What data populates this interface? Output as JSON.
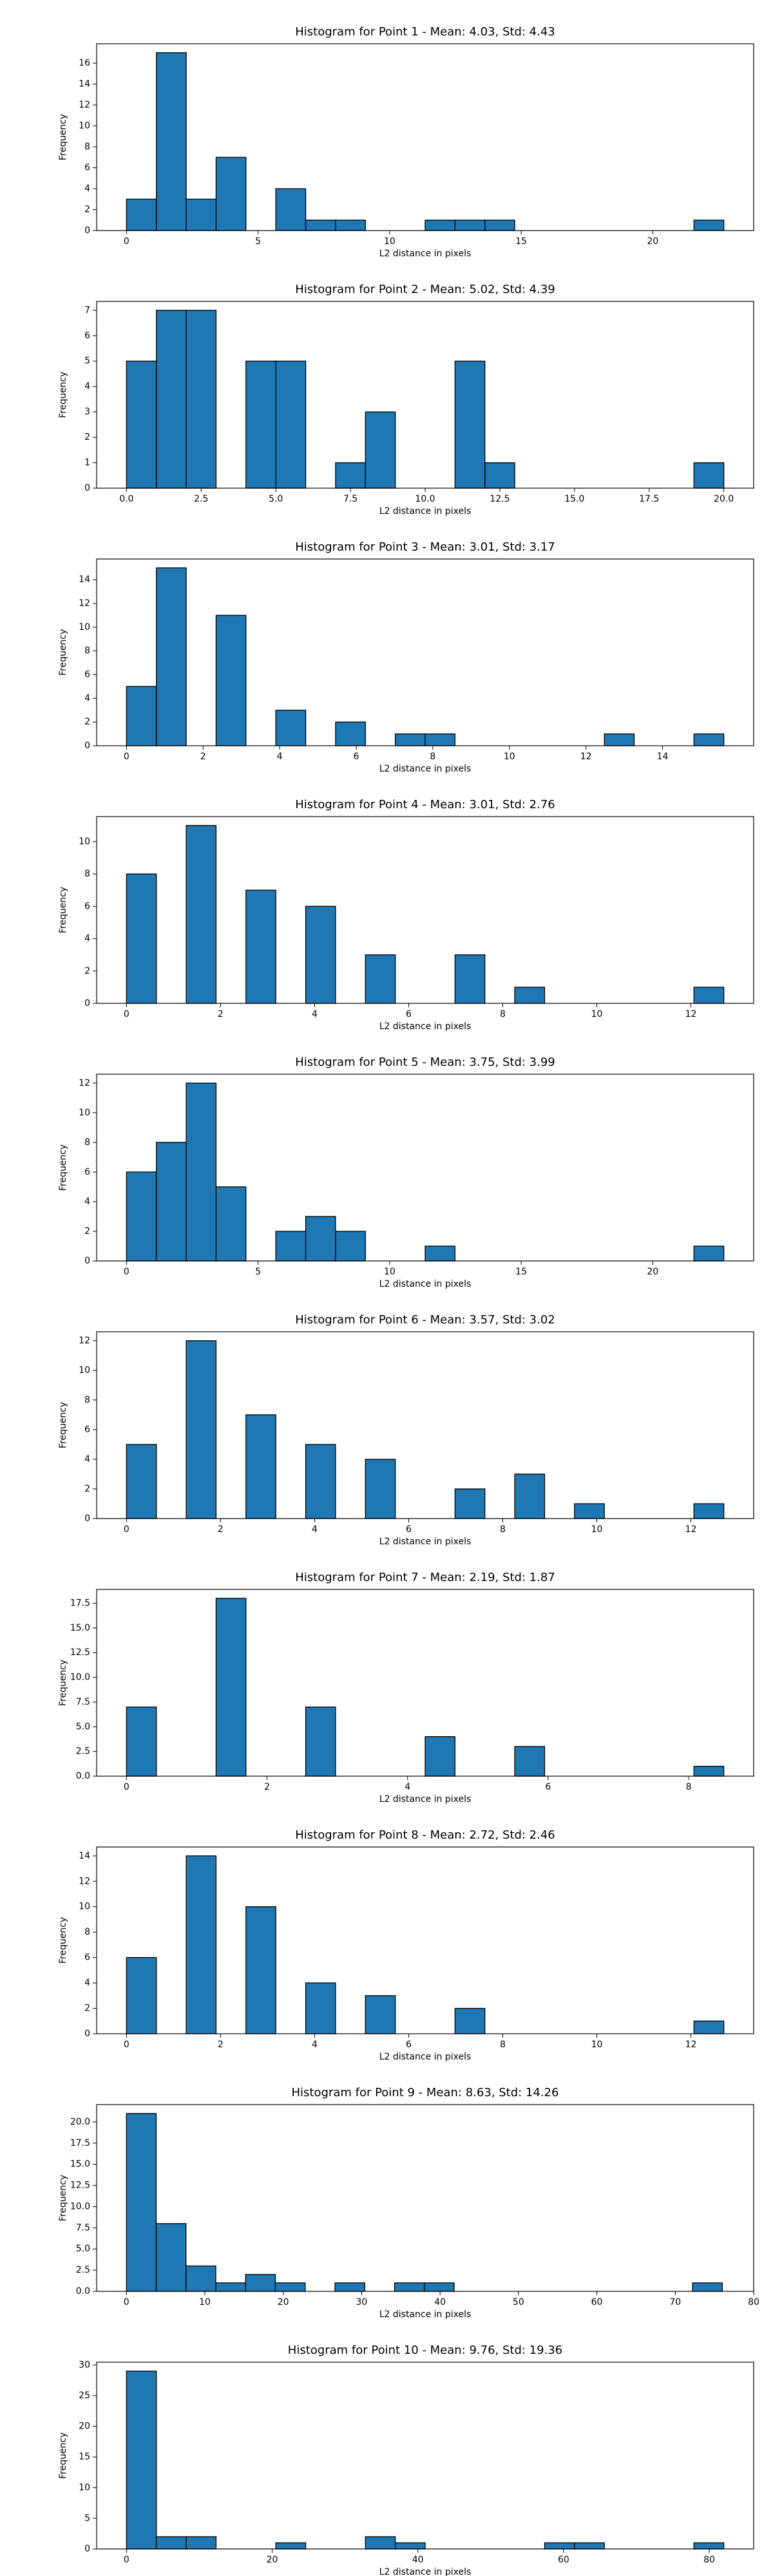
{
  "chart_data": [
    {
      "type": "histogram",
      "title": "Histogram for Point 1 - Mean: 4.03, Std: 4.43",
      "x_label": "L2 distance in pixels",
      "y_label": "Frequency",
      "color": "#1f77b4",
      "edgecolor": "#000000",
      "bins": [
        0,
        1.135,
        2.27,
        3.405,
        4.54,
        5.675,
        6.81,
        7.945,
        9.08,
        10.215,
        11.35,
        12.485,
        13.62,
        14.755,
        15.89,
        17.025,
        18.16,
        19.295,
        20.43,
        21.565,
        22.7
      ],
      "values": [
        3,
        17,
        3,
        7,
        0,
        4,
        1,
        1,
        0,
        0,
        1,
        1,
        1,
        0,
        0,
        0,
        0,
        0,
        0,
        1
      ],
      "xlim": [
        -1.135,
        23.835
      ],
      "ylim": [
        0,
        17.85
      ],
      "xticks": [
        0,
        5,
        10,
        15,
        20
      ],
      "yticks": [
        0,
        2,
        4,
        6,
        8,
        10,
        12,
        14,
        16
      ]
    },
    {
      "type": "histogram",
      "title": "Histogram for Point 2 - Mean: 5.02, Std: 4.39",
      "x_label": "L2 distance in pixels",
      "y_label": "Frequency",
      "color": "#1f77b4",
      "edgecolor": "#000000",
      "bins": [
        0,
        1,
        2,
        3,
        4,
        5,
        6,
        7,
        8,
        9,
        10,
        11,
        12,
        13,
        14,
        15,
        16,
        17,
        18,
        19,
        20
      ],
      "values": [
        5,
        7,
        7,
        0,
        5,
        5,
        0,
        1,
        3,
        0,
        0,
        5,
        1,
        0,
        0,
        0,
        0,
        0,
        0,
        1
      ],
      "xlim": [
        -1,
        21
      ],
      "ylim": [
        0,
        7.35
      ],
      "xticks": [
        {
          "value": 0,
          "label": "0.0"
        },
        2.5,
        {
          "value": 5,
          "label": "5.0"
        },
        7.5,
        {
          "value": 10,
          "label": "10.0"
        },
        12.5,
        {
          "value": 15,
          "label": "15.0"
        },
        17.5,
        {
          "value": 20,
          "label": "20.0"
        }
      ],
      "yticks": [
        0,
        1,
        2,
        3,
        4,
        5,
        6,
        7
      ]
    },
    {
      "type": "histogram",
      "title": "Histogram for Point 3 - Mean: 3.01, Std: 3.17",
      "x_label": "L2 distance in pixels",
      "y_label": "Frequency",
      "color": "#1f77b4",
      "edgecolor": "#000000",
      "bins": [
        0,
        0.78,
        1.56,
        2.34,
        3.12,
        3.9,
        4.68,
        5.46,
        6.24,
        7.02,
        7.8,
        8.58,
        9.36,
        10.14,
        10.92,
        11.7,
        12.48,
        13.26,
        14.04,
        14.82,
        15.6
      ],
      "values": [
        5,
        15,
        0,
        11,
        0,
        3,
        0,
        2,
        0,
        1,
        1,
        0,
        0,
        0,
        0,
        0,
        1,
        0,
        0,
        1
      ],
      "xlim": [
        -0.78,
        16.38
      ],
      "ylim": [
        0,
        15.75
      ],
      "xticks": [
        0,
        2,
        4,
        6,
        8,
        10,
        12,
        14
      ],
      "yticks": [
        0,
        2,
        4,
        6,
        8,
        10,
        12,
        14
      ]
    },
    {
      "type": "histogram",
      "title": "Histogram for Point 4 - Mean: 3.01, Std: 2.76",
      "x_label": "L2 distance in pixels",
      "y_label": "Frequency",
      "color": "#1f77b4",
      "edgecolor": "#000000",
      "bins": [
        0,
        0.635,
        1.27,
        1.905,
        2.54,
        3.175,
        3.81,
        4.445,
        5.08,
        5.715,
        6.35,
        6.985,
        7.62,
        8.255,
        8.89,
        9.525,
        10.16,
        10.795,
        11.43,
        12.065,
        12.7
      ],
      "values": [
        8,
        0,
        11,
        0,
        7,
        0,
        6,
        0,
        3,
        0,
        0,
        3,
        0,
        1,
        0,
        0,
        0,
        0,
        0,
        1
      ],
      "xlim": [
        -0.635,
        13.335
      ],
      "ylim": [
        0,
        11.55
      ],
      "xticks": [
        0,
        2,
        4,
        6,
        8,
        10,
        12
      ],
      "yticks": [
        0,
        2,
        4,
        6,
        8,
        10
      ]
    },
    {
      "type": "histogram",
      "title": "Histogram for Point 5 - Mean: 3.75, Std: 3.99",
      "x_label": "L2 distance in pixels",
      "y_label": "Frequency",
      "color": "#1f77b4",
      "edgecolor": "#000000",
      "bins": [
        0,
        1.135,
        2.27,
        3.405,
        4.54,
        5.675,
        6.81,
        7.945,
        9.08,
        10.215,
        11.35,
        12.485,
        13.62,
        14.755,
        15.89,
        17.025,
        18.16,
        19.295,
        20.43,
        21.565,
        22.7
      ],
      "values": [
        6,
        8,
        12,
        5,
        0,
        2,
        3,
        2,
        0,
        0,
        1,
        0,
        0,
        0,
        0,
        0,
        0,
        0,
        0,
        1
      ],
      "xlim": [
        -1.135,
        23.835
      ],
      "ylim": [
        0,
        12.6
      ],
      "xticks": [
        0,
        5,
        10,
        15,
        20
      ],
      "yticks": [
        0,
        2,
        4,
        6,
        8,
        10,
        12
      ]
    },
    {
      "type": "histogram",
      "title": "Histogram for Point 6 - Mean: 3.57, Std: 3.02",
      "x_label": "L2 distance in pixels",
      "y_label": "Frequency",
      "color": "#1f77b4",
      "edgecolor": "#000000",
      "bins": [
        0,
        0.635,
        1.27,
        1.905,
        2.54,
        3.175,
        3.81,
        4.445,
        5.08,
        5.715,
        6.35,
        6.985,
        7.62,
        8.255,
        8.89,
        9.525,
        10.16,
        10.795,
        11.43,
        12.065,
        12.7
      ],
      "values": [
        5,
        0,
        12,
        0,
        7,
        0,
        5,
        0,
        4,
        0,
        0,
        2,
        0,
        3,
        0,
        1,
        0,
        0,
        0,
        1
      ],
      "xlim": [
        -0.635,
        13.335
      ],
      "ylim": [
        0,
        12.6
      ],
      "xticks": [
        0,
        2,
        4,
        6,
        8,
        10,
        12
      ],
      "yticks": [
        0,
        2,
        4,
        6,
        8,
        10,
        12
      ]
    },
    {
      "type": "histogram",
      "title": "Histogram for Point 7 - Mean: 2.19, Std: 1.87",
      "x_label": "L2 distance in pixels",
      "y_label": "Frequency",
      "color": "#1f77b4",
      "edgecolor": "#000000",
      "bins": [
        0,
        0.425,
        0.85,
        1.275,
        1.7,
        2.125,
        2.55,
        2.975,
        3.4,
        3.825,
        4.25,
        4.675,
        5.1,
        5.525,
        5.95,
        6.375,
        6.8,
        7.225,
        7.65,
        8.075,
        8.5
      ],
      "values": [
        7,
        0,
        0,
        18,
        0,
        0,
        7,
        0,
        0,
        0,
        4,
        0,
        0,
        3,
        0,
        0,
        0,
        0,
        0,
        1
      ],
      "xlim": [
        -0.425,
        8.925
      ],
      "ylim": [
        0,
        18.9
      ],
      "xticks": [
        0,
        2,
        4,
        6,
        8
      ],
      "yticks": [
        {
          "value": 0,
          "label": "0.0"
        },
        2.5,
        {
          "value": 5,
          "label": "5.0"
        },
        7.5,
        {
          "value": 10,
          "label": "10.0"
        },
        12.5,
        {
          "value": 15,
          "label": "15.0"
        },
        17.5
      ]
    },
    {
      "type": "histogram",
      "title": "Histogram for Point 8 - Mean: 2.72, Std: 2.46",
      "x_label": "L2 distance in pixels",
      "y_label": "Frequency",
      "color": "#1f77b4",
      "edgecolor": "#000000",
      "bins": [
        0,
        0.635,
        1.27,
        1.905,
        2.54,
        3.175,
        3.81,
        4.445,
        5.08,
        5.715,
        6.35,
        6.985,
        7.62,
        8.255,
        8.89,
        9.525,
        10.16,
        10.795,
        11.43,
        12.065,
        12.7
      ],
      "values": [
        6,
        0,
        14,
        0,
        10,
        0,
        4,
        0,
        3,
        0,
        0,
        2,
        0,
        0,
        0,
        0,
        0,
        0,
        0,
        1
      ],
      "xlim": [
        -0.635,
        13.335
      ],
      "ylim": [
        0,
        14.7
      ],
      "xticks": [
        0,
        2,
        4,
        6,
        8,
        10,
        12
      ],
      "yticks": [
        0,
        2,
        4,
        6,
        8,
        10,
        12,
        14
      ]
    },
    {
      "type": "histogram",
      "title": "Histogram for Point 9 - Mean: 8.63, Std: 14.26",
      "x_label": "L2 distance in pixels",
      "y_label": "Frequency",
      "color": "#1f77b4",
      "edgecolor": "#000000",
      "bins": [
        0,
        3.8,
        7.6,
        11.4,
        15.2,
        19,
        22.8,
        26.6,
        30.4,
        34.2,
        38,
        41.8,
        45.6,
        49.4,
        53.2,
        57,
        60.8,
        64.6,
        68.4,
        72.2,
        76
      ],
      "values": [
        21,
        8,
        3,
        1,
        2,
        1,
        0,
        1,
        0,
        1,
        1,
        0,
        0,
        0,
        0,
        0,
        0,
        0,
        0,
        1
      ],
      "xlim": [
        -3.8,
        80
      ],
      "ylim": [
        0,
        22.05
      ],
      "xticks": [
        0,
        10,
        20,
        30,
        40,
        50,
        60,
        70,
        80
      ],
      "yticks": [
        {
          "value": 0,
          "label": "0.0"
        },
        2.5,
        {
          "value": 5,
          "label": "5.0"
        },
        7.5,
        {
          "value": 10,
          "label": "10.0"
        },
        12.5,
        {
          "value": 15,
          "label": "15.0"
        },
        17.5,
        {
          "value": 20,
          "label": "20.0"
        }
      ]
    },
    {
      "type": "histogram",
      "title": "Histogram for Point 10 - Mean: 9.76, Std: 19.36",
      "x_label": "L2 distance in pixels",
      "y_label": "Frequency",
      "color": "#1f77b4",
      "edgecolor": "#000000",
      "bins": [
        0,
        4.1,
        8.2,
        12.3,
        16.4,
        20.5,
        24.6,
        28.7,
        32.8,
        36.9,
        41,
        45.1,
        49.2,
        53.3,
        57.4,
        61.5,
        65.6,
        69.7,
        73.8,
        77.9,
        82
      ],
      "values": [
        29,
        2,
        2,
        0,
        0,
        1,
        0,
        0,
        2,
        1,
        0,
        0,
        0,
        0,
        1,
        1,
        0,
        0,
        0,
        1
      ],
      "xlim": [
        -4.1,
        86.1
      ],
      "ylim": [
        0,
        30.45
      ],
      "xticks": [
        0,
        20,
        40,
        60,
        80
      ],
      "yticks": [
        0,
        5,
        10,
        15,
        20,
        25,
        30
      ]
    }
  ]
}
